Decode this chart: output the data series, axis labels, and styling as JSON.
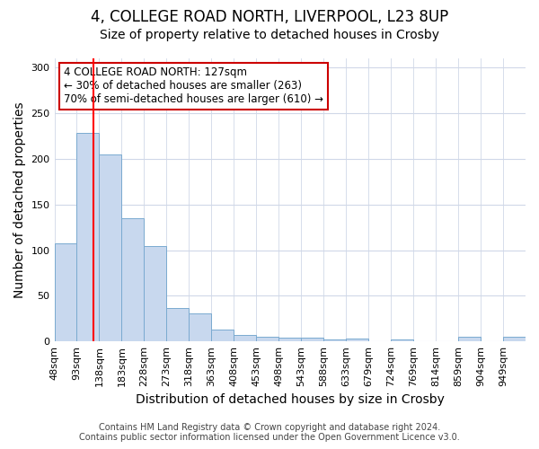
{
  "title": "4, COLLEGE ROAD NORTH, LIVERPOOL, L23 8UP",
  "subtitle": "Size of property relative to detached houses in Crosby",
  "xlabel": "Distribution of detached houses by size in Crosby",
  "ylabel": "Number of detached properties",
  "bin_labels": [
    "48sqm",
    "93sqm",
    "138sqm",
    "183sqm",
    "228sqm",
    "273sqm",
    "318sqm",
    "363sqm",
    "408sqm",
    "453sqm",
    "498sqm",
    "543sqm",
    "588sqm",
    "633sqm",
    "679sqm",
    "724sqm",
    "769sqm",
    "814sqm",
    "859sqm",
    "904sqm",
    "949sqm"
  ],
  "bin_edges": [
    48,
    93,
    138,
    183,
    228,
    273,
    318,
    363,
    408,
    453,
    498,
    543,
    588,
    633,
    679,
    724,
    769,
    814,
    859,
    904,
    949,
    994
  ],
  "bar_heights": [
    107,
    228,
    205,
    135,
    104,
    37,
    31,
    13,
    7,
    5,
    4,
    4,
    2,
    3,
    0,
    2,
    0,
    0,
    5,
    0,
    5
  ],
  "bar_color": "#c8d8ee",
  "bar_edge_color": "#7aaad0",
  "red_line_x": 127,
  "annotation_text": "4 COLLEGE ROAD NORTH: 127sqm\n← 30% of detached houses are smaller (263)\n70% of semi-detached houses are larger (610) →",
  "annotation_box_color": "#ffffff",
  "annotation_box_edge_color": "#cc0000",
  "footer_line1": "Contains HM Land Registry data © Crown copyright and database right 2024.",
  "footer_line2": "Contains public sector information licensed under the Open Government Licence v3.0.",
  "ylim": [
    0,
    310
  ],
  "yticks": [
    0,
    50,
    100,
    150,
    200,
    250,
    300
  ],
  "title_fontsize": 12,
  "subtitle_fontsize": 10,
  "axis_label_fontsize": 10,
  "tick_fontsize": 8,
  "annotation_fontsize": 8.5,
  "footer_fontsize": 7,
  "background_color": "#ffffff",
  "plot_bg_color": "#ffffff",
  "grid_color": "#d0d8e8"
}
